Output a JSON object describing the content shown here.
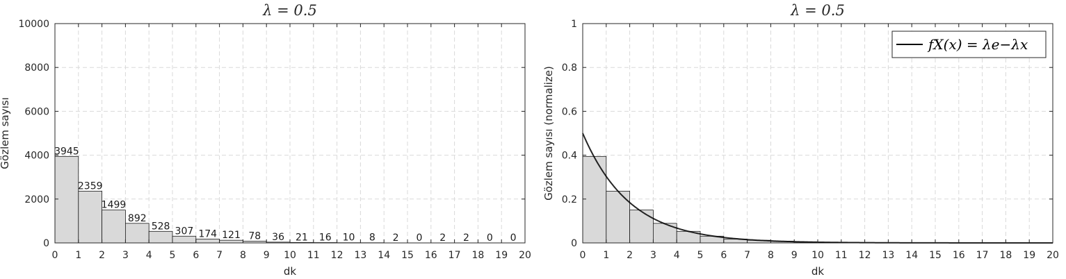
{
  "chart_data": [
    {
      "type": "bar",
      "title": "λ = 0.5",
      "xlabel": "dk",
      "ylabel": "Gözlem sayısı",
      "xlim": [
        0,
        20
      ],
      "ylim": [
        0,
        10000
      ],
      "xticks": [
        0,
        1,
        2,
        3,
        4,
        5,
        6,
        7,
        8,
        9,
        10,
        11,
        12,
        13,
        14,
        15,
        16,
        17,
        18,
        19,
        20
      ],
      "yticks": [
        0,
        2000,
        4000,
        6000,
        8000,
        10000
      ],
      "bin_edges": [
        0,
        1,
        2,
        3,
        4,
        5,
        6,
        7,
        8,
        9,
        10,
        11,
        12,
        13,
        14,
        15,
        16,
        17,
        18,
        19,
        20
      ],
      "values": [
        3945,
        2359,
        1499,
        892,
        528,
        307,
        174,
        121,
        78,
        36,
        21,
        16,
        10,
        8,
        2,
        0,
        2,
        2,
        0,
        0
      ],
      "grid": true
    },
    {
      "type": "bar",
      "title": "λ = 0.5",
      "xlabel": "dk",
      "ylabel": "Gözlem sayısı (normalize)",
      "xlim": [
        0,
        20
      ],
      "ylim": [
        0,
        1
      ],
      "xticks": [
        0,
        1,
        2,
        3,
        4,
        5,
        6,
        7,
        8,
        9,
        10,
        11,
        12,
        13,
        14,
        15,
        16,
        17,
        18,
        19,
        20
      ],
      "yticks": [
        0,
        0.2,
        0.4,
        0.6,
        0.8,
        1
      ],
      "bin_edges": [
        0,
        1,
        2,
        3,
        4,
        5,
        6,
        7,
        8,
        9,
        10,
        11,
        12,
        13,
        14,
        15,
        16,
        17,
        18,
        19,
        20
      ],
      "values": [
        0.3945,
        0.2359,
        0.1499,
        0.0892,
        0.0528,
        0.0307,
        0.0174,
        0.0121,
        0.0078,
        0.0036,
        0.0021,
        0.0016,
        0.001,
        0.0008,
        0.0002,
        0,
        0.0002,
        0.0002,
        0,
        0
      ],
      "line": {
        "name": "f_X(x) = λe^{-λx}",
        "lambda": 0.5
      },
      "legend": {
        "label": "fX(x) = λe−λx",
        "position": "top-right"
      },
      "grid": true
    }
  ]
}
